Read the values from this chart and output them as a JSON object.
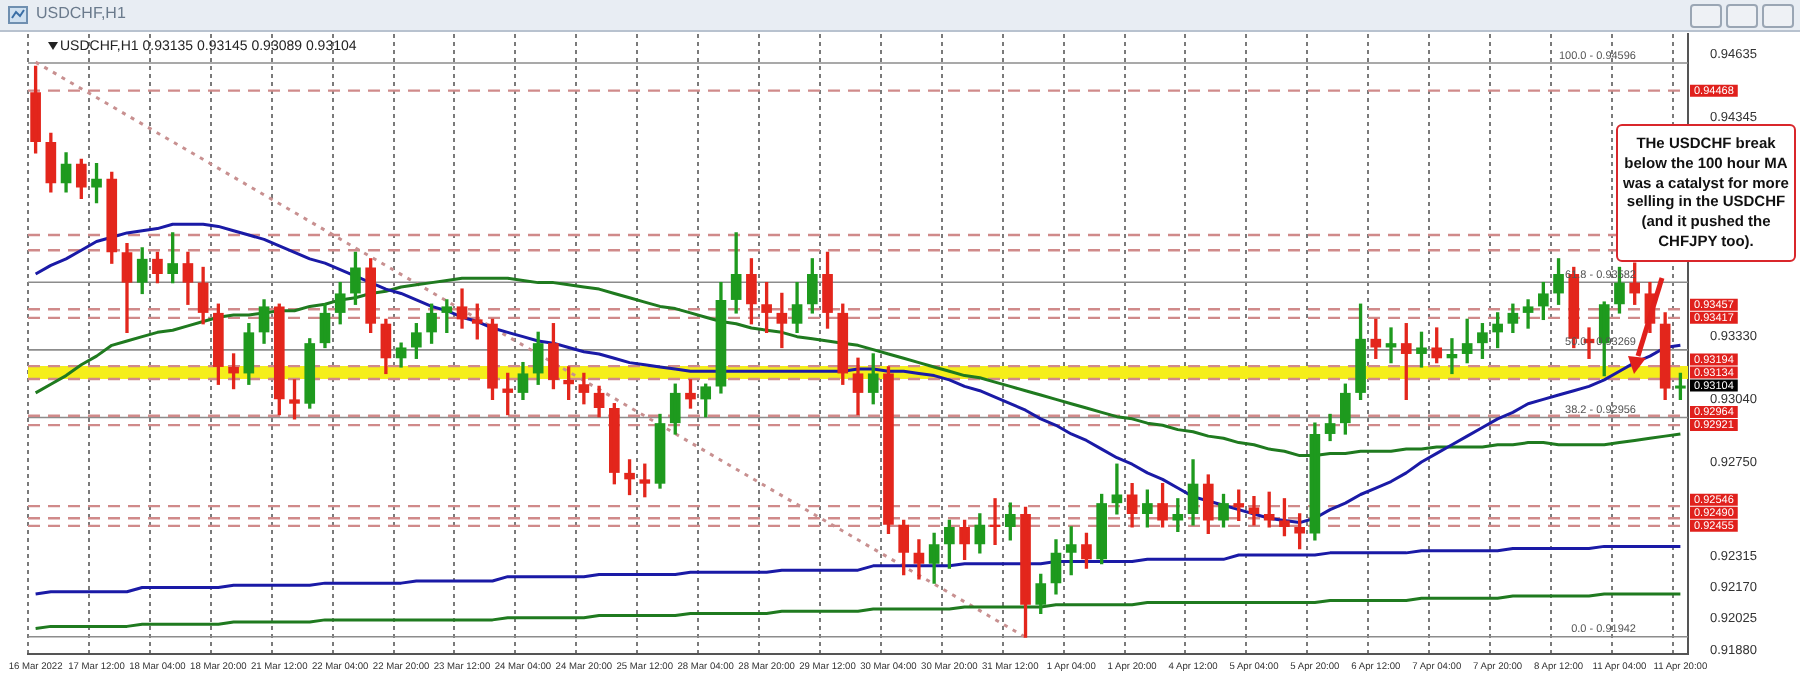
{
  "chart_data": {
    "type": "candlestick",
    "title": "USDCHF,H1",
    "subtitle": "USDCHF,H1  0.93135 0.93145 0.93089 0.93104",
    "categories": [
      "16 Mar 2022",
      null,
      null,
      null,
      "17 Mar 12:00",
      null,
      null,
      null,
      "18 Mar 04:00",
      null,
      null,
      null,
      "18 Mar 20:00",
      null,
      null,
      null,
      "21 Mar 12:00",
      null,
      null,
      null,
      "22 Mar 04:00",
      null,
      null,
      null,
      "22 Mar 20:00",
      null,
      null,
      null,
      "23 Mar 12:00",
      null,
      null,
      null,
      "24 Mar 04:00",
      null,
      null,
      null,
      "24 Mar 20:00",
      null,
      null,
      null,
      "25 Mar 12:00",
      null,
      null,
      null,
      "28 Mar 04:00",
      null,
      null,
      null,
      "28 Mar 20:00",
      null,
      null,
      null,
      "29 Mar 12:00",
      null,
      null,
      null,
      "30 Mar 04:00",
      null,
      null,
      null,
      "30 Mar 20:00",
      null,
      null,
      null,
      "31 Mar 12:00",
      null,
      null,
      null,
      "1 Apr 04:00",
      null,
      null,
      null,
      "1 Apr 20:00",
      null,
      null,
      null,
      "4 Apr 12:00",
      null,
      null,
      null,
      "5 Apr 04:00",
      null,
      null,
      null,
      "5 Apr 20:00",
      null,
      null,
      null,
      "6 Apr 12:00",
      null,
      null,
      null,
      "7 Apr 04:00",
      null,
      null,
      null,
      "7 Apr 20:00",
      null,
      null,
      null,
      "8 Apr 12:00",
      null,
      null,
      null,
      "11 Apr 04:00",
      null,
      null,
      null,
      "11 Apr 20:00"
    ],
    "ohlc": [
      [
        0.9446,
        0.9458,
        0.9418,
        0.9423
      ],
      [
        0.9423,
        0.9427,
        0.94,
        0.9404
      ],
      [
        0.9404,
        0.9418,
        0.94,
        0.9413
      ],
      [
        0.9413,
        0.9415,
        0.9397,
        0.9402
      ],
      [
        0.9402,
        0.9413,
        0.9395,
        0.9406
      ],
      [
        0.9406,
        0.9409,
        0.9367,
        0.9372
      ],
      [
        0.9372,
        0.9376,
        0.9335,
        0.9358
      ],
      [
        0.9358,
        0.9374,
        0.9353,
        0.9369
      ],
      [
        0.9369,
        0.9372,
        0.9358,
        0.9362
      ],
      [
        0.9362,
        0.9381,
        0.9358,
        0.9367
      ],
      [
        0.9367,
        0.9372,
        0.9348,
        0.9358
      ],
      [
        0.9358,
        0.9365,
        0.9339,
        0.9344
      ],
      [
        0.9344,
        0.9348,
        0.9311,
        0.9319
      ],
      [
        0.9319,
        0.9325,
        0.9309,
        0.9316
      ],
      [
        0.9316,
        0.9339,
        0.9311,
        0.9335
      ],
      [
        0.9335,
        0.935,
        0.933,
        0.9347
      ],
      [
        0.9347,
        0.9348,
        0.9297,
        0.9304
      ],
      [
        0.9304,
        0.9313,
        0.9295,
        0.9302
      ],
      [
        0.9302,
        0.9332,
        0.93,
        0.933
      ],
      [
        0.933,
        0.9348,
        0.9328,
        0.9344
      ],
      [
        0.9344,
        0.9358,
        0.9339,
        0.9353
      ],
      [
        0.9353,
        0.9372,
        0.9348,
        0.9365
      ],
      [
        0.9365,
        0.9369,
        0.9335,
        0.9339
      ],
      [
        0.9339,
        0.9341,
        0.9316,
        0.9323
      ],
      [
        0.9323,
        0.933,
        0.9319,
        0.9328
      ],
      [
        0.9328,
        0.9339,
        0.9323,
        0.9335
      ],
      [
        0.9335,
        0.9348,
        0.933,
        0.9344
      ],
      [
        0.9344,
        0.935,
        0.9335,
        0.9347
      ],
      [
        0.9347,
        0.9355,
        0.9337,
        0.9341
      ],
      [
        0.9341,
        0.9348,
        0.9332,
        0.9339
      ],
      [
        0.9339,
        0.9341,
        0.9304,
        0.9309
      ],
      [
        0.9309,
        0.9316,
        0.9297,
        0.9307
      ],
      [
        0.9307,
        0.9321,
        0.9304,
        0.9316
      ],
      [
        0.9316,
        0.9335,
        0.9311,
        0.933
      ],
      [
        0.933,
        0.9339,
        0.9309,
        0.9313
      ],
      [
        0.9313,
        0.9319,
        0.9304,
        0.9311
      ],
      [
        0.9311,
        0.9316,
        0.9302,
        0.9307
      ],
      [
        0.9307,
        0.931,
        0.9296,
        0.93
      ],
      [
        0.93,
        0.9302,
        0.9265,
        0.927
      ],
      [
        0.927,
        0.9276,
        0.926,
        0.9267
      ],
      [
        0.9267,
        0.9274,
        0.9259,
        0.9265
      ],
      [
        0.9265,
        0.9297,
        0.9263,
        0.9293
      ],
      [
        0.9293,
        0.9311,
        0.9288,
        0.9307
      ],
      [
        0.9307,
        0.9313,
        0.93,
        0.9304
      ],
      [
        0.9304,
        0.9311,
        0.9296,
        0.931
      ],
      [
        0.931,
        0.9358,
        0.9307,
        0.935
      ],
      [
        0.935,
        0.9381,
        0.9344,
        0.9362
      ],
      [
        0.9362,
        0.9369,
        0.9339,
        0.9348
      ],
      [
        0.9348,
        0.9358,
        0.9335,
        0.9344
      ],
      [
        0.9344,
        0.9353,
        0.9328,
        0.9339
      ],
      [
        0.9339,
        0.9358,
        0.9335,
        0.9348
      ],
      [
        0.9348,
        0.9369,
        0.9344,
        0.9362
      ],
      [
        0.9362,
        0.9372,
        0.9337,
        0.9344
      ],
      [
        0.9344,
        0.9348,
        0.9311,
        0.9316
      ],
      [
        0.9316,
        0.9323,
        0.9297,
        0.9307
      ],
      [
        0.9307,
        0.9325,
        0.9302,
        0.9316
      ],
      [
        0.9316,
        0.9319,
        0.9242,
        0.9246
      ],
      [
        0.9246,
        0.9248,
        0.9223,
        0.9233
      ],
      [
        0.9233,
        0.9239,
        0.9221,
        0.9228
      ],
      [
        0.9228,
        0.9242,
        0.9219,
        0.9237
      ],
      [
        0.9237,
        0.9248,
        0.9226,
        0.9245
      ],
      [
        0.9245,
        0.9248,
        0.923,
        0.9237
      ],
      [
        0.9237,
        0.9251,
        0.9233,
        0.9246
      ],
      [
        0.9246,
        0.9258,
        0.9237,
        0.9245
      ],
      [
        0.9245,
        0.9256,
        0.9239,
        0.9251
      ],
      [
        0.9251,
        0.9254,
        0.9194,
        0.9209
      ],
      [
        0.9209,
        0.9223,
        0.9205,
        0.9219
      ],
      [
        0.9219,
        0.9239,
        0.9214,
        0.9233
      ],
      [
        0.9233,
        0.9245,
        0.9223,
        0.9237
      ],
      [
        0.9237,
        0.9242,
        0.9226,
        0.923
      ],
      [
        0.923,
        0.926,
        0.9228,
        0.9256
      ],
      [
        0.9256,
        0.9274,
        0.9251,
        0.926
      ],
      [
        0.926,
        0.9265,
        0.9245,
        0.9251
      ],
      [
        0.9251,
        0.9262,
        0.9245,
        0.9256
      ],
      [
        0.9256,
        0.9265,
        0.9245,
        0.9248
      ],
      [
        0.9248,
        0.9258,
        0.9243,
        0.9251
      ],
      [
        0.9251,
        0.9276,
        0.9246,
        0.9265
      ],
      [
        0.9265,
        0.9269,
        0.9242,
        0.9248
      ],
      [
        0.9248,
        0.926,
        0.9245,
        0.9256
      ],
      [
        0.9256,
        0.9262,
        0.9248,
        0.9254
      ],
      [
        0.9254,
        0.9259,
        0.9246,
        0.9251
      ],
      [
        0.9251,
        0.9261,
        0.9245,
        0.9248
      ],
      [
        0.9248,
        0.9258,
        0.9241,
        0.9245
      ],
      [
        0.9245,
        0.9251,
        0.9235,
        0.9242
      ],
      [
        0.9242,
        0.9293,
        0.9239,
        0.9288
      ],
      [
        0.9288,
        0.9297,
        0.9285,
        0.9293
      ],
      [
        0.9293,
        0.9311,
        0.9288,
        0.9307
      ],
      [
        0.9307,
        0.9348,
        0.9304,
        0.9332
      ],
      [
        0.9332,
        0.9341,
        0.9323,
        0.9328
      ],
      [
        0.9328,
        0.9337,
        0.9321,
        0.933
      ],
      [
        0.933,
        0.9339,
        0.9304,
        0.9325
      ],
      [
        0.9325,
        0.9335,
        0.9319,
        0.9328
      ],
      [
        0.9328,
        0.9337,
        0.9321,
        0.9323
      ],
      [
        0.9323,
        0.9332,
        0.9316,
        0.9325
      ],
      [
        0.9325,
        0.9341,
        0.9321,
        0.933
      ],
      [
        0.933,
        0.9339,
        0.9323,
        0.9335
      ],
      [
        0.9335,
        0.9344,
        0.9328,
        0.9339
      ],
      [
        0.9339,
        0.9348,
        0.9335,
        0.9344
      ],
      [
        0.9344,
        0.935,
        0.9337,
        0.9347
      ],
      [
        0.9347,
        0.9358,
        0.9341,
        0.9353
      ],
      [
        0.9353,
        0.9369,
        0.9348,
        0.9362
      ],
      [
        0.9362,
        0.9365,
        0.9328,
        0.9332
      ],
      [
        0.9332,
        0.9337,
        0.9323,
        0.933
      ],
      [
        0.933,
        0.9349,
        0.9315,
        0.9348
      ],
      [
        0.9348,
        0.9365,
        0.9344,
        0.9358
      ],
      [
        0.9358,
        0.9367,
        0.9348,
        0.9353
      ],
      [
        0.9353,
        0.9358,
        0.9335,
        0.9339
      ],
      [
        0.9339,
        0.9344,
        0.9304,
        0.9309
      ],
      [
        0.9309,
        0.9316,
        0.9304,
        0.93104
      ]
    ],
    "colors": [
      "#e3261c",
      "#e3261c",
      "#1e9a1e",
      "#e3261c",
      "#1e9a1e",
      "#e3261c",
      "#e3261c",
      "#1e9a1e",
      "#e3261c",
      "#1e9a1e",
      "#e3261c",
      "#e3261c",
      "#e3261c",
      "#e3261c",
      "#1e9a1e",
      "#1e9a1e",
      "#e3261c",
      "#e3261c",
      "#1e9a1e",
      "#1e9a1e",
      "#1e9a1e",
      "#1e9a1e",
      "#e3261c",
      "#e3261c",
      "#1e9a1e",
      "#1e9a1e",
      "#1e9a1e",
      "#1e9a1e",
      "#e3261c",
      "#e3261c",
      "#e3261c",
      "#e3261c",
      "#1e9a1e",
      "#1e9a1e",
      "#e3261c",
      "#e3261c",
      "#e3261c",
      "#e3261c",
      "#e3261c",
      "#e3261c",
      "#e3261c",
      "#1e9a1e",
      "#1e9a1e",
      "#e3261c",
      "#1e9a1e",
      "#1e9a1e",
      "#1e9a1e",
      "#e3261c",
      "#e3261c",
      "#e3261c",
      "#1e9a1e",
      "#1e9a1e",
      "#e3261c",
      "#e3261c",
      "#e3261c",
      "#1e9a1e",
      "#e3261c",
      "#e3261c",
      "#e3261c",
      "#1e9a1e",
      "#1e9a1e",
      "#e3261c",
      "#1e9a1e",
      "#e3261c",
      "#1e9a1e",
      "#e3261c",
      "#1e9a1e",
      "#1e9a1e",
      "#1e9a1e",
      "#e3261c",
      "#1e9a1e",
      "#1e9a1e",
      "#e3261c",
      "#1e9a1e",
      "#e3261c",
      "#1e9a1e",
      "#1e9a1e",
      "#e3261c",
      "#1e9a1e",
      "#e3261c",
      "#e3261c",
      "#e3261c",
      "#e3261c",
      "#e3261c",
      "#1e9a1e",
      "#1e9a1e",
      "#1e9a1e",
      "#1e9a1e",
      "#e3261c",
      "#1e9a1e",
      "#e3261c",
      "#1e9a1e",
      "#e3261c",
      "#1e9a1e",
      "#1e9a1e",
      "#1e9a1e",
      "#1e9a1e",
      "#1e9a1e",
      "#1e9a1e",
      "#1e9a1e",
      "#1e9a1e",
      "#e3261c",
      "#e3261c",
      "#1e9a1e",
      "#1e9a1e",
      "#e3261c",
      "#e3261c",
      "#e3261c",
      "#1e9a1e"
    ],
    "series": [
      {
        "type": "line",
        "color": "#1a1aa6",
        "values": [
          0.9362,
          0.9366,
          0.9369,
          0.9373,
          0.9377,
          0.9379,
          0.9381,
          0.9382,
          0.9383,
          0.9385,
          0.9385,
          0.9385,
          0.9384,
          0.9382,
          0.938,
          0.9378,
          0.9375,
          0.9372,
          0.9369,
          0.9367,
          0.9364,
          0.9361,
          0.9358,
          0.9355,
          0.9353,
          0.935,
          0.9347,
          0.9345,
          0.9342,
          0.934,
          0.9337,
          0.9335,
          0.9333,
          0.9331,
          0.933,
          0.9328,
          0.9326,
          0.9325,
          0.9323,
          0.9321,
          0.932,
          0.9319,
          0.9318,
          0.9317,
          0.9317,
          0.9317,
          0.9317,
          0.9317,
          0.9317,
          0.9317,
          0.9317,
          0.9317,
          0.9317,
          0.9317,
          0.9318,
          0.9318,
          0.9317,
          0.9317,
          0.9316,
          0.9315,
          0.9313,
          0.931,
          0.9308,
          0.9305,
          0.9302,
          0.9299,
          0.9295,
          0.9292,
          0.9288,
          0.9285,
          0.9281,
          0.9277,
          0.9274,
          0.927,
          0.9267,
          0.9263,
          0.9259,
          0.9257,
          0.9255,
          0.9253,
          0.9251,
          0.9249,
          0.9248,
          0.9247,
          0.9249,
          0.9253,
          0.9256,
          0.926,
          0.9263,
          0.9266,
          0.927,
          0.9275,
          0.9279,
          0.9283,
          0.9287,
          0.9291,
          0.9295,
          0.9298,
          0.9302,
          0.9304,
          0.9306,
          0.9308,
          0.931,
          0.9313,
          0.9317,
          0.9321,
          0.9324,
          0.9328,
          0.9329
        ]
      },
      {
        "type": "line",
        "color": "#1f7a1f",
        "values": [
          0.9307,
          0.9311,
          0.9315,
          0.932,
          0.9324,
          0.9329,
          0.9331,
          0.9333,
          0.9335,
          0.9336,
          0.9338,
          0.934,
          0.9342,
          0.9343,
          0.9343,
          0.9344,
          0.9345,
          0.9345,
          0.9347,
          0.9348,
          0.935,
          0.9351,
          0.9353,
          0.9354,
          0.9356,
          0.9357,
          0.9358,
          0.9359,
          0.936,
          0.936,
          0.936,
          0.936,
          0.9359,
          0.9358,
          0.9358,
          0.9357,
          0.9356,
          0.9355,
          0.9353,
          0.9351,
          0.9349,
          0.9347,
          0.9346,
          0.9344,
          0.9342,
          0.934,
          0.9339,
          0.9337,
          0.9336,
          0.9335,
          0.9333,
          0.9332,
          0.9331,
          0.933,
          0.9329,
          0.9327,
          0.9325,
          0.9323,
          0.9321,
          0.9319,
          0.9317,
          0.9315,
          0.9314,
          0.9312,
          0.931,
          0.9308,
          0.9306,
          0.9304,
          0.9302,
          0.93,
          0.9298,
          0.9296,
          0.9295,
          0.9293,
          0.9292,
          0.929,
          0.9289,
          0.9287,
          0.9286,
          0.9284,
          0.9283,
          0.9281,
          0.928,
          0.9278,
          0.9278,
          0.9279,
          0.9279,
          0.928,
          0.928,
          0.928,
          0.9281,
          0.9281,
          0.9282,
          0.9282,
          0.9282,
          0.9282,
          0.9283,
          0.9283,
          0.9284,
          0.9284,
          0.9283,
          0.9283,
          0.9283,
          0.9283,
          0.9284,
          0.9285,
          0.9286,
          0.9287,
          0.9288
        ]
      },
      {
        "type": "line",
        "color": "#1a1aa6",
        "values": [
          0.9214,
          0.9215,
          0.9215,
          0.9215,
          0.9215,
          0.9215,
          0.9215,
          0.9217,
          0.9217,
          0.9217,
          0.9217,
          0.9217,
          0.9217,
          0.9218,
          0.9218,
          0.9218,
          0.9218,
          0.9218,
          0.9218,
          0.9219,
          0.9219,
          0.9219,
          0.9219,
          0.9219,
          0.9219,
          0.922,
          0.922,
          0.922,
          0.922,
          0.922,
          0.922,
          0.9222,
          0.9222,
          0.9222,
          0.9222,
          0.9222,
          0.9222,
          0.9223,
          0.9223,
          0.9223,
          0.9223,
          0.9223,
          0.9223,
          0.9224,
          0.9224,
          0.9224,
          0.9224,
          0.9224,
          0.9224,
          0.9225,
          0.9225,
          0.9225,
          0.9225,
          0.9225,
          0.9225,
          0.9227,
          0.9227,
          0.9227,
          0.9227,
          0.9227,
          0.9227,
          0.9228,
          0.9228,
          0.9228,
          0.9228,
          0.9228,
          0.9228,
          0.9229,
          0.9229,
          0.9229,
          0.9229,
          0.9229,
          0.9229,
          0.923,
          0.923,
          0.923,
          0.923,
          0.923,
          0.923,
          0.9232,
          0.9232,
          0.9232,
          0.9232,
          0.9232,
          0.9232,
          0.9233,
          0.9233,
          0.9233,
          0.9233,
          0.9233,
          0.9233,
          0.9234,
          0.9234,
          0.9234,
          0.9234,
          0.9234,
          0.9234,
          0.9235,
          0.9235,
          0.9235,
          0.9235,
          0.9235,
          0.9235,
          0.9236,
          0.9236,
          0.9236,
          0.9236,
          0.9236,
          0.9236
        ]
      },
      {
        "type": "line",
        "color": "#1f7a1f",
        "values": [
          0.9198,
          0.9199,
          0.9199,
          0.9199,
          0.9199,
          0.9199,
          0.9199,
          0.92,
          0.92,
          0.92,
          0.92,
          0.92,
          0.92,
          0.9201,
          0.9201,
          0.9201,
          0.9201,
          0.9201,
          0.9201,
          0.9202,
          0.9202,
          0.9202,
          0.9202,
          0.9202,
          0.9202,
          0.9202,
          0.9202,
          0.9202,
          0.9202,
          0.9202,
          0.9202,
          0.9203,
          0.9203,
          0.9203,
          0.9203,
          0.9203,
          0.9203,
          0.9204,
          0.9204,
          0.9204,
          0.9204,
          0.9204,
          0.9204,
          0.9205,
          0.9205,
          0.9205,
          0.9205,
          0.9205,
          0.9205,
          0.9206,
          0.9206,
          0.9206,
          0.9206,
          0.9206,
          0.9206,
          0.9207,
          0.9207,
          0.9207,
          0.9207,
          0.9207,
          0.9207,
          0.9208,
          0.9208,
          0.9208,
          0.9208,
          0.9208,
          0.9208,
          0.9209,
          0.9209,
          0.9209,
          0.9209,
          0.9209,
          0.9209,
          0.921,
          0.921,
          0.921,
          0.921,
          0.921,
          0.921,
          0.921,
          0.921,
          0.921,
          0.921,
          0.921,
          0.921,
          0.9211,
          0.9211,
          0.9211,
          0.9211,
          0.9211,
          0.9211,
          0.9212,
          0.9212,
          0.9212,
          0.9212,
          0.9212,
          0.9212,
          0.9213,
          0.9213,
          0.9213,
          0.9213,
          0.9213,
          0.9213,
          0.9214,
          0.9214,
          0.9214,
          0.9214,
          0.9214,
          0.9214
        ]
      },
      {
        "type": "line",
        "color": "#c89090",
        "line_style": "dotted",
        "values": [
          0.946,
          null,
          null,
          null,
          null,
          null,
          null,
          null,
          null,
          null,
          null,
          null,
          null,
          null,
          null,
          null,
          null,
          null,
          null,
          null,
          null,
          null,
          null,
          null,
          null,
          null,
          null,
          null,
          null,
          null,
          null,
          null,
          null,
          null,
          null,
          null,
          null,
          null,
          null,
          null,
          null,
          null,
          null,
          null,
          null,
          null,
          null,
          null,
          null,
          null,
          null,
          null,
          null,
          null,
          null,
          null,
          null,
          null,
          null,
          null,
          null,
          null,
          null,
          null,
          null,
          0.9194,
          null,
          null,
          null,
          null,
          null,
          null,
          null,
          null,
          null,
          null,
          null,
          null,
          null,
          null,
          null,
          null,
          null,
          null,
          null,
          null,
          null,
          null,
          null,
          null,
          null,
          null,
          null,
          null,
          null,
          null,
          null,
          null,
          null,
          null,
          null,
          null,
          null,
          null,
          null,
          null,
          null,
          null,
          null
        ]
      }
    ],
    "ylim": [
      0.9186,
      0.9473
    ],
    "yticks": [
      0.94635,
      0.94345,
      {
        "value": 0.9333,
        "label": "0.93330"
      },
      {
        "value": 0.9304,
        "label": "0.93040"
      },
      {
        "value": 0.9275,
        "label": "0.92750"
      },
      0.92315,
      {
        "value": 0.9217,
        "label": "0.92170"
      },
      0.92025,
      {
        "value": 0.9188,
        "label": "0.91880"
      }
    ],
    "ref_lines": [
      {
        "axis": "y",
        "value": 0.94596,
        "color": "#8c8c8c",
        "line_style": "solid"
      },
      {
        "axis": "y",
        "value": 0.93582,
        "color": "#8c8c8c",
        "line_style": "solid"
      },
      {
        "axis": "y",
        "value": 0.93269,
        "color": "#8c8c8c",
        "line_style": "solid"
      },
      {
        "axis": "y",
        "value": 0.92956,
        "color": "#8c8c8c",
        "line_style": "solid"
      },
      {
        "axis": "y",
        "value": 0.91942,
        "color": "#8c8c8c",
        "line_style": "solid"
      },
      {
        "axis": "y",
        "value": 0.94468,
        "label": "0.94468",
        "color": "#d08a8a",
        "line_style": "dashed"
      },
      {
        "axis": "y",
        "value": 0.938,
        "label": null,
        "color": "#d08a8a",
        "line_style": "dashed"
      },
      {
        "axis": "y",
        "value": 0.9373,
        "label": null,
        "color": "#d08a8a",
        "line_style": "dashed"
      },
      {
        "axis": "y",
        "value": 0.93457,
        "label": "0.93457",
        "color": "#d08a8a",
        "line_style": "dashed"
      },
      {
        "axis": "y",
        "value": 0.93417,
        "label": "0.93417",
        "color": "#d08a8a",
        "line_style": "dashed"
      },
      {
        "axis": "y",
        "value": 0.93194,
        "label": "0.93194",
        "color": "#d08a8a",
        "line_style": "dashed"
      },
      {
        "axis": "y",
        "value": 0.93134,
        "label": "0.93134",
        "color": "#d08a8a",
        "line_style": "dashed"
      },
      {
        "axis": "y",
        "value": 0.92964,
        "label": "0.92964",
        "color": "#d08a8a",
        "line_style": "dashed"
      },
      {
        "axis": "y",
        "value": 0.92921,
        "label": "0.92921",
        "color": "#d08a8a",
        "line_style": "dashed"
      },
      {
        "axis": "y",
        "value": 0.92546,
        "label": "0.92546",
        "color": "#d08a8a",
        "line_style": "dashed"
      },
      {
        "axis": "y",
        "value": 0.9249,
        "label": "0.92490",
        "color": "#d08a8a",
        "line_style": "dashed"
      },
      {
        "axis": "y",
        "value": 0.92455,
        "label": "0.92455",
        "color": "#d08a8a",
        "line_style": "dashed"
      }
    ],
    "bands": [
      {
        "axis": "y",
        "from": 0.93134,
        "to": 0.93194,
        "color": "#f5ee1a"
      }
    ],
    "annotations": [
      "THe USDCHF break below the 100 hour MA was a catalyst for more selling in the USDCHF (and it pushed the CHFJPY too).",
      "0.93104",
      {
        "text": "100.0 - 0.94596",
        "y": 0.94596
      },
      {
        "text": "61.8 - 0.93582",
        "y": 0.93582
      },
      {
        "text": "50.0 - 0.93269",
        "y": 0.93269
      },
      {
        "text": "38.2 - 0.92956",
        "y": 0.92956
      },
      {
        "text": "0.0 - 0.91942",
        "y": 0.91942
      }
    ],
    "grid": "x",
    "legend": false,
    "marker": "none"
  }
}
